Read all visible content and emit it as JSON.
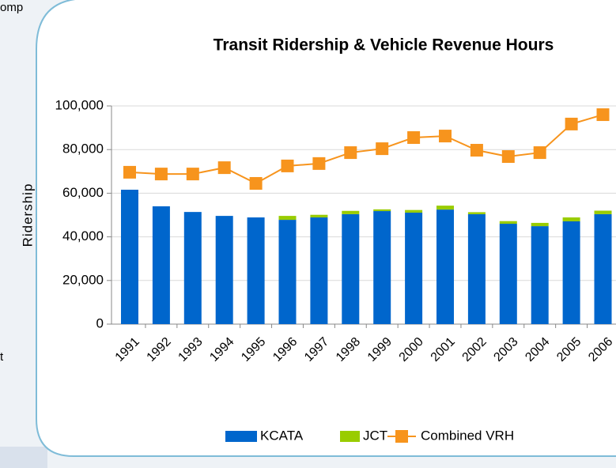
{
  "fragments": [
    "omp",
    "t"
  ],
  "chart_data": {
    "type": "bar-line",
    "title": "Transit Ridership & Vehicle Revenue Hours",
    "y_label": "Ridership",
    "categories": [
      "1991",
      "1992",
      "1993",
      "1994",
      "1995",
      "1996",
      "1997",
      "1998",
      "1999",
      "2000",
      "2001",
      "2002",
      "2003",
      "2004",
      "2005",
      "2006"
    ],
    "series": [
      {
        "name": "KCATA",
        "color": "#0066cc",
        "kind": "bar",
        "values": [
          61600,
          54000,
          51400,
          49600,
          48900,
          47800,
          48900,
          50400,
          51800,
          51100,
          52500,
          50400,
          46000,
          44900,
          47100,
          50400
        ]
      },
      {
        "name": "JCT",
        "color": "#99cc00",
        "kind": "bar",
        "values": [
          0,
          0,
          0,
          0,
          0,
          1800,
          1200,
          1500,
          800,
          1200,
          1800,
          900,
          1200,
          1500,
          1800,
          1600
        ]
      },
      {
        "name": "Combined VRH",
        "color": "#f7941d",
        "kind": "line",
        "values": [
          69600,
          68800,
          68800,
          71700,
          64500,
          72500,
          73600,
          78600,
          80400,
          85500,
          86200,
          79700,
          76800,
          78600,
          91700,
          96000
        ]
      }
    ],
    "ylim": [
      0,
      100000
    ],
    "yticks": [
      0,
      {
        "value": 20000,
        "label": "20,000"
      },
      {
        "value": 40000,
        "label": "40,000"
      },
      {
        "value": 60000,
        "label": "60,000"
      },
      {
        "value": 80000,
        "label": "80,000"
      },
      {
        "value": 100000,
        "label": "100,000"
      }
    ],
    "grid": true,
    "legend": "bottom"
  }
}
